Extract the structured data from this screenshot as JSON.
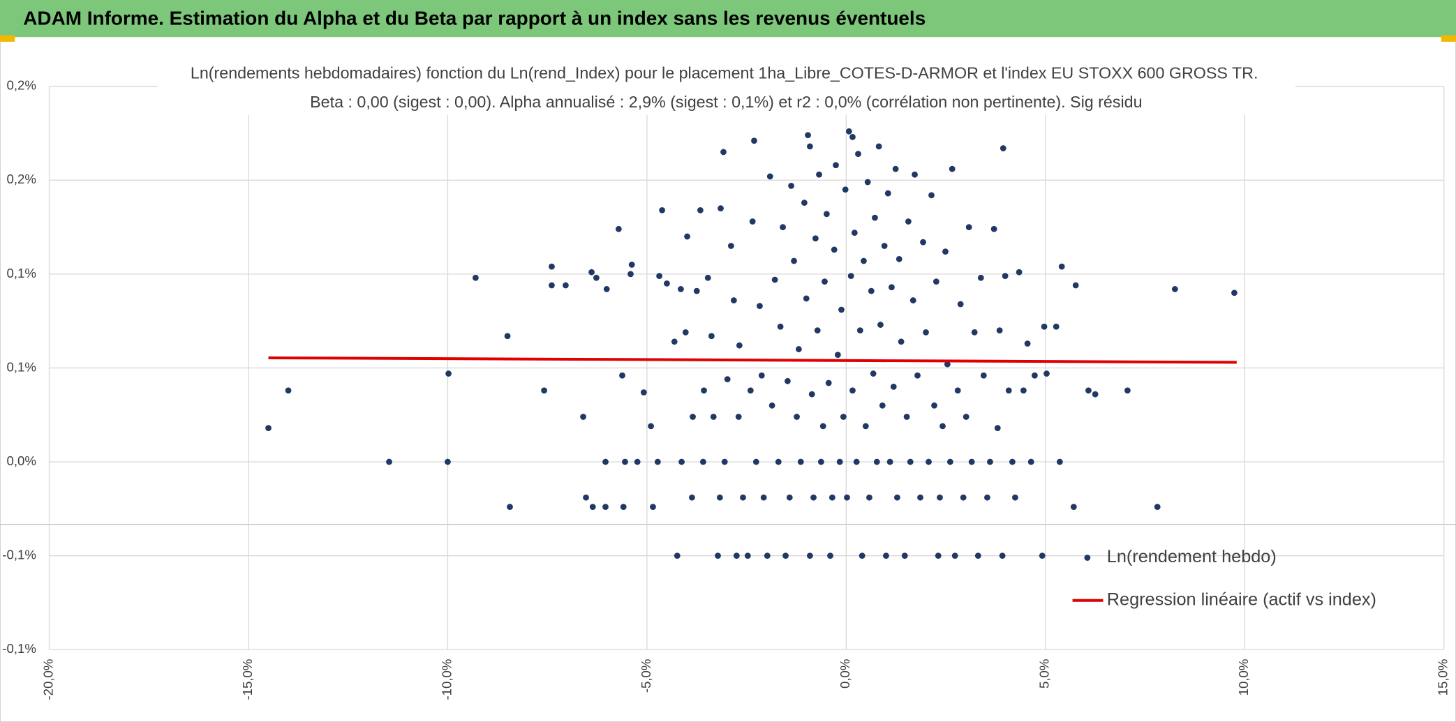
{
  "chart_data": {
    "type": "scatter",
    "title": "ADAM Informe. Estimation du Alpha et du Beta par rapport à un index sans les revenus éventuels",
    "subtitle": [
      "Ln(rendements hebdomadaires) fonction du Ln(rend_Index) pour le placement 1ha_Libre_COTES-D-ARMOR et l'index EU STOXX 600 GROSS TR.",
      "Beta : 0,00 (sigest : 0,00). Alpha annualisé : 2,9% (sigest : 0,1%) et r2 : 0,0% (corrélation non pertinente). Sig résidu"
    ],
    "xlim": [
      -20,
      15
    ],
    "xticks": [
      {
        "value": -20,
        "label": "-20,0%"
      },
      {
        "value": -15,
        "label": "-15,0%"
      },
      {
        "value": -10,
        "label": "-10,0%"
      },
      {
        "value": -5,
        "label": "-5,0%"
      },
      {
        "value": 0,
        "label": "0,0%"
      },
      {
        "value": 5,
        "label": "5,0%"
      },
      {
        "value": 10,
        "label": "10,0%"
      },
      {
        "value": 15,
        "label": "15,0%"
      }
    ],
    "ylim": [
      -0.1,
      0.2
    ],
    "yticks": [
      {
        "value": -0.1,
        "label": "-0,1%"
      },
      {
        "value": -0.05,
        "label": "-0,1%"
      },
      {
        "value": 0,
        "label": "0,0%"
      },
      {
        "value": 0.05,
        "label": "0,1%"
      },
      {
        "value": 0.1,
        "label": "0,1%"
      },
      {
        "value": 0.15,
        "label": "0,2%"
      },
      {
        "value": 0.2,
        "label": "0,2%"
      }
    ],
    "grid": true,
    "legend": "bottom-right",
    "series": [
      {
        "name": "Ln(rendement hebdo)",
        "color": "#203864",
        "type": "scatter",
        "x": [
          -14.5,
          -14.0,
          -11.47,
          -10.0,
          -9.98,
          -9.3,
          -8.5,
          -8.44,
          -7.58,
          -7.39,
          -7.39,
          -7.04,
          -6.6,
          -6.53,
          -6.39,
          -6.27,
          -6.36,
          -6.04,
          -6.01,
          -6.04,
          -5.71,
          -5.62,
          -5.55,
          -5.41,
          -5.38,
          -5.59,
          -5.24,
          -5.08,
          -4.9,
          -4.85,
          -4.69,
          -4.62,
          -4.73,
          -4.5,
          -4.31,
          -4.24,
          -4.15,
          -4.13,
          -4.03,
          -3.99,
          -3.87,
          -3.85,
          -3.75,
          -3.66,
          -3.59,
          -3.57,
          -3.47,
          -3.38,
          -3.33,
          -3.22,
          -3.17,
          -3.15,
          -3.08,
          -3.05,
          -2.98,
          -2.89,
          -2.82,
          -2.75,
          -2.7,
          -2.68,
          -2.59,
          -2.47,
          -2.4,
          -2.35,
          -2.31,
          -2.26,
          -2.17,
          -2.12,
          -2.07,
          -1.98,
          -1.91,
          -1.86,
          -1.79,
          -1.7,
          -1.65,
          -1.59,
          -1.52,
          -1.47,
          -1.42,
          -1.38,
          -1.31,
          -1.24,
          -1.19,
          -1.14,
          -1.05,
          -1.0,
          -0.96,
          -0.91,
          -0.86,
          -0.82,
          -0.77,
          -0.72,
          -0.68,
          -0.63,
          -0.58,
          -0.54,
          -0.49,
          -0.44,
          -0.4,
          -0.35,
          -0.3,
          -0.26,
          -0.21,
          -0.16,
          -0.12,
          -0.07,
          -0.02,
          0.02,
          0.07,
          0.12,
          0.16,
          0.21,
          0.26,
          0.3,
          0.35,
          0.4,
          0.44,
          0.49,
          0.54,
          0.58,
          0.63,
          0.68,
          0.72,
          0.77,
          0.82,
          0.86,
          0.91,
          0.96,
          1.0,
          1.05,
          1.1,
          1.14,
          1.19,
          1.24,
          1.28,
          1.33,
          1.38,
          1.47,
          1.52,
          1.56,
          1.61,
          1.68,
          1.72,
          1.79,
          1.86,
          1.93,
          2.0,
          2.07,
          2.14,
          2.21,
          2.26,
          2.31,
          2.35,
          2.42,
          2.49,
          2.54,
          2.61,
          2.66,
          2.73,
          2.8,
          2.87,
          2.94,
          3.01,
          3.08,
          3.15,
          3.22,
          3.31,
          3.38,
          3.45,
          3.54,
          3.61,
          3.71,
          3.8,
          3.85,
          3.92,
          3.94,
          3.99,
          4.08,
          4.17,
          4.24,
          4.34,
          4.45,
          4.55,
          4.64,
          4.73,
          4.92,
          4.97,
          5.03,
          5.27,
          5.36,
          5.41,
          5.71,
          5.76,
          6.08,
          6.25,
          7.06,
          7.81,
          8.25,
          9.74,
          0.16,
          -0.91
        ],
        "values": [
          0.018,
          0.038,
          0,
          0,
          0.047,
          0.098,
          0.067,
          -0.024,
          0.038,
          0.104,
          0.094,
          0.094,
          0.024,
          -0.019,
          0.101,
          0.098,
          -0.024,
          0,
          0.092,
          -0.024,
          0.124,
          0.046,
          0,
          0.1,
          0.105,
          -0.024,
          0,
          0.037,
          0.019,
          -0.024,
          0.099,
          0.134,
          0,
          0.095,
          0.064,
          -0.05,
          0.092,
          0,
          0.069,
          0.12,
          -0.019,
          0.024,
          0.091,
          0.134,
          0,
          0.038,
          0.098,
          0.067,
          0.024,
          -0.05,
          -0.019,
          0.135,
          0.165,
          0,
          0.044,
          0.115,
          0.086,
          -0.05,
          0.024,
          0.062,
          -0.019,
          -0.05,
          0.038,
          0.128,
          0.171,
          0,
          0.083,
          0.046,
          -0.019,
          -0.05,
          0.152,
          0.03,
          0.097,
          0,
          0.072,
          0.125,
          -0.05,
          0.043,
          -0.019,
          0.147,
          0.107,
          0.024,
          0.06,
          0,
          0.138,
          0.087,
          0.174,
          -0.05,
          0.036,
          -0.019,
          0.119,
          0.07,
          0.153,
          0,
          0.019,
          0.096,
          0.132,
          0.042,
          -0.05,
          -0.019,
          0.113,
          0.158,
          0.057,
          0,
          0.081,
          0.024,
          0.145,
          -0.019,
          0.176,
          0.099,
          0.038,
          0.122,
          0,
          0.164,
          0.07,
          -0.05,
          0.107,
          0.019,
          0.149,
          -0.019,
          0.091,
          0.047,
          0.13,
          0,
          0.168,
          0.073,
          0.03,
          0.115,
          -0.05,
          0.143,
          0,
          0.093,
          0.04,
          0.156,
          -0.019,
          0.108,
          0.064,
          -0.05,
          0.024,
          0.128,
          0,
          0.086,
          0.153,
          0.046,
          -0.019,
          0.117,
          0.069,
          0,
          0.142,
          0.03,
          0.096,
          -0.05,
          -0.019,
          0.019,
          0.112,
          0.052,
          0,
          0.156,
          -0.05,
          0.038,
          0.084,
          -0.019,
          0.024,
          0.125,
          0,
          0.069,
          -0.05,
          0.098,
          0.046,
          -0.019,
          0,
          0.124,
          0.018,
          0.07,
          -0.05,
          0.167,
          0.099,
          0.038,
          0,
          -0.019,
          0.101,
          0.038,
          0.063,
          0,
          0.046,
          -0.05,
          0.072,
          0.047,
          0.072,
          0,
          0.104,
          -0.024,
          0.094,
          0.038,
          0.036,
          0.038,
          -0.024,
          0.092,
          0.09,
          0.173,
          0.168
        ]
      },
      {
        "name": "Regression linéaire (actif vs index)",
        "color": "#e00000",
        "type": "line",
        "x": [
          -14.5,
          9.8
        ],
        "values": [
          0.0554,
          0.053
        ]
      }
    ]
  }
}
